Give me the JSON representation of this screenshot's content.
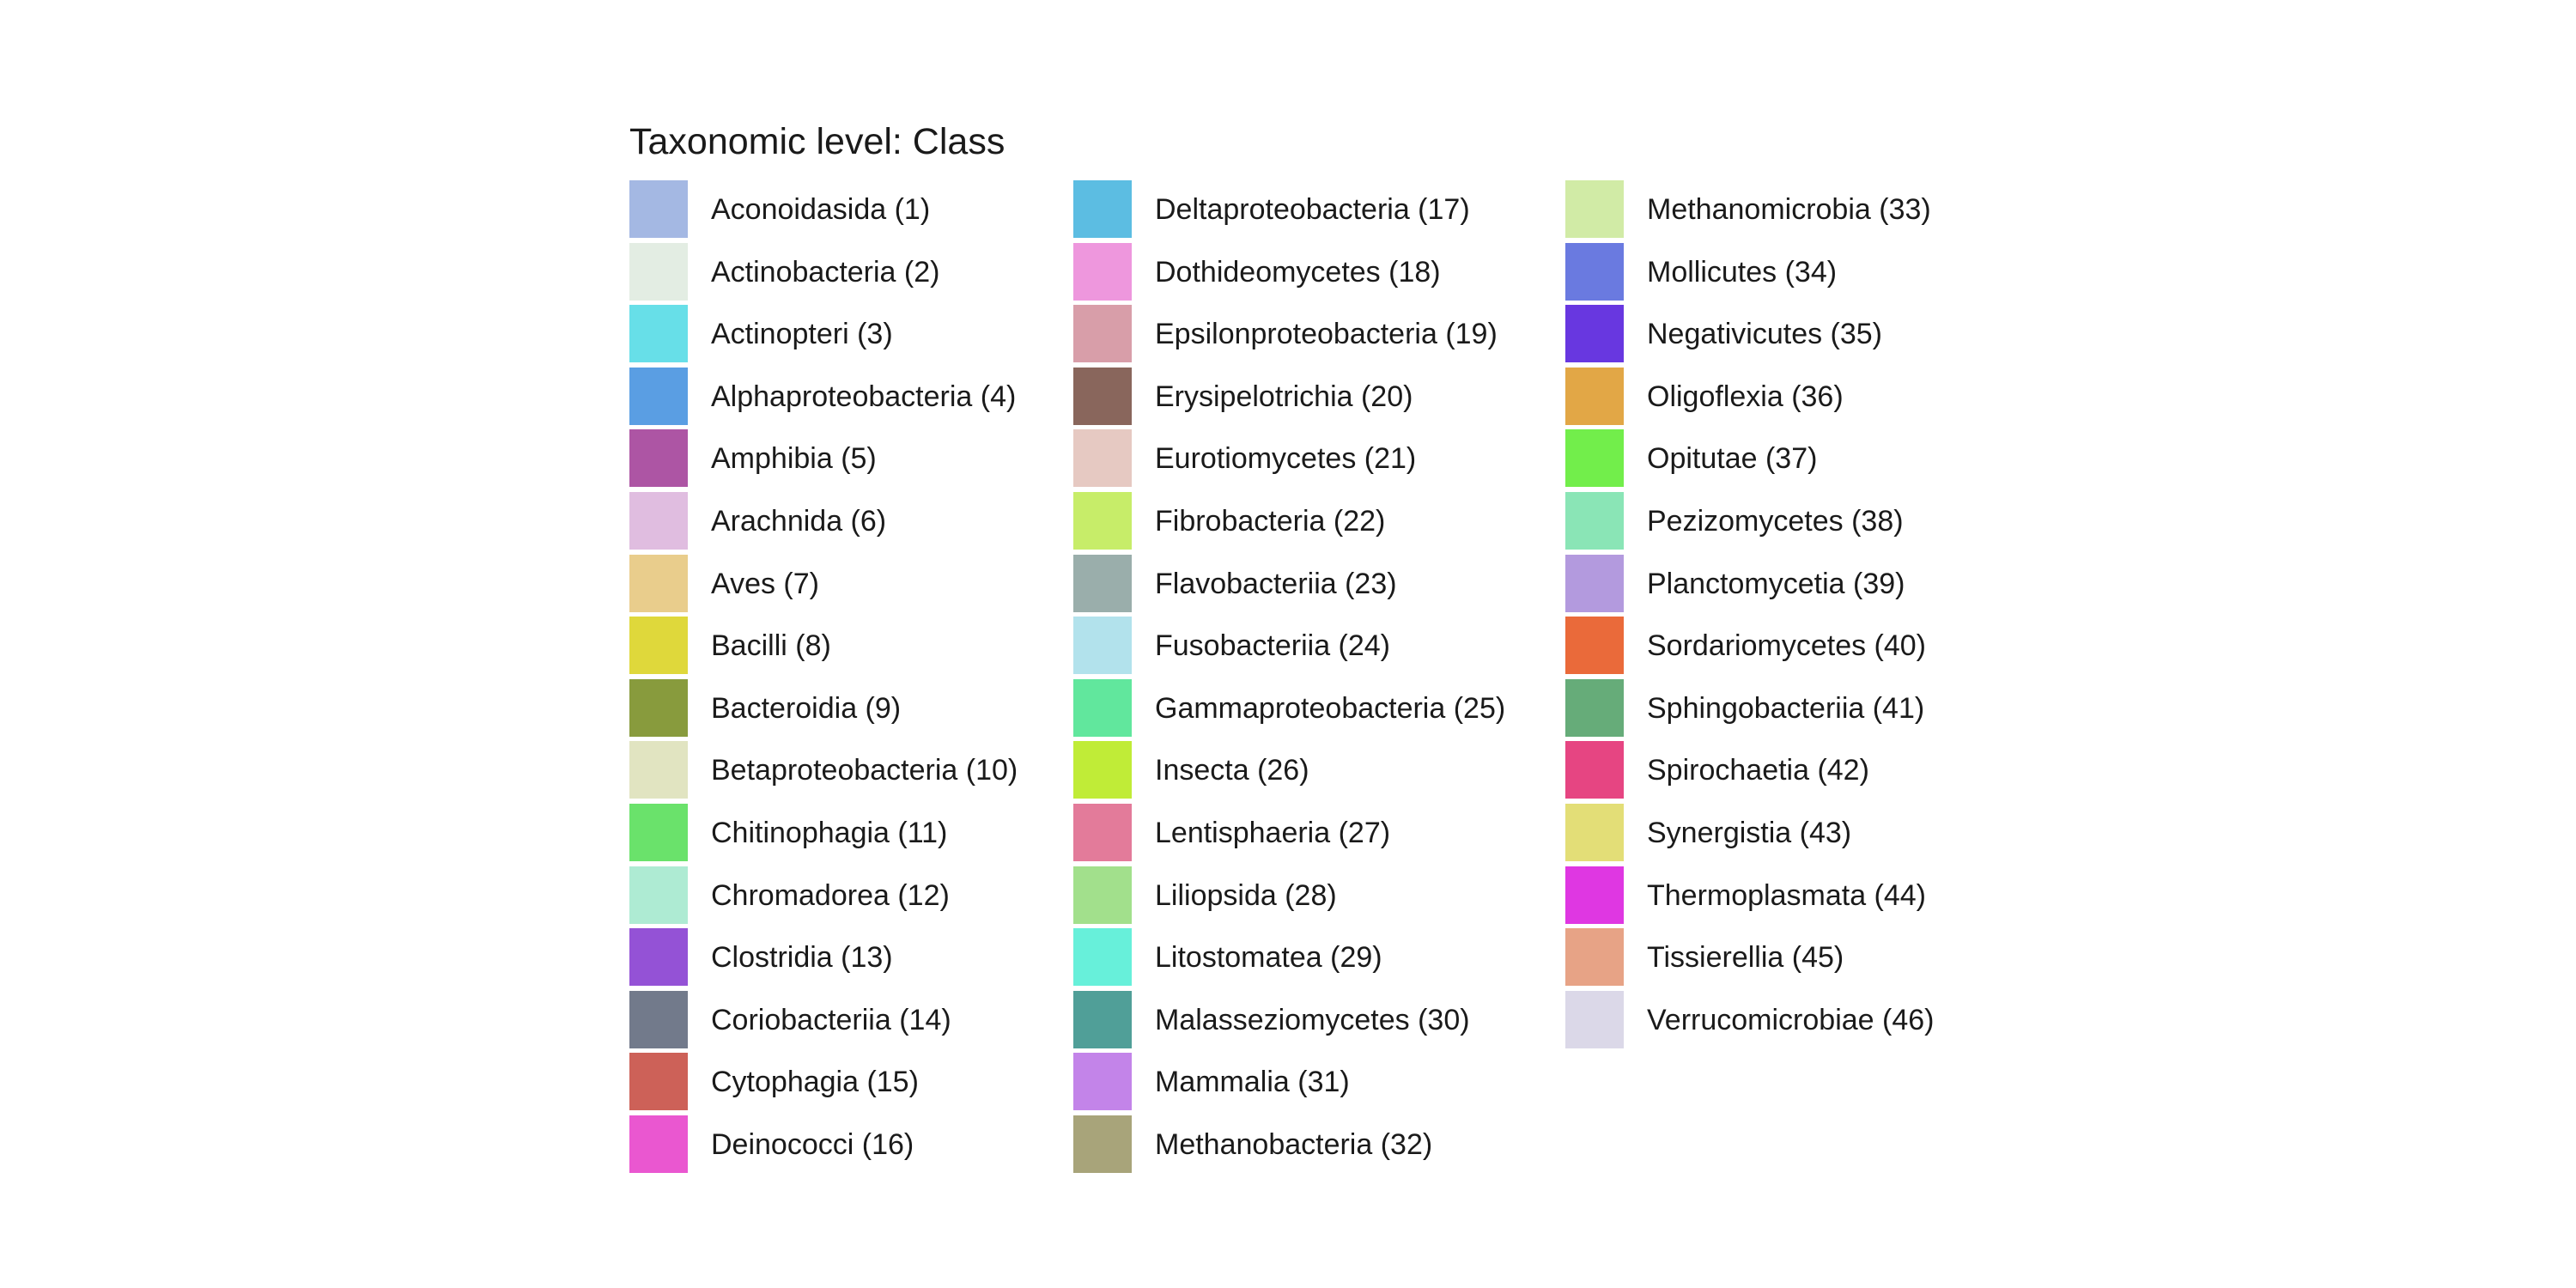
{
  "chart_data": {
    "type": "legend",
    "title": "Taxonomic level: Class",
    "columns": 3,
    "rows_per_column": 16,
    "items": [
      {
        "label": "Aconoidasida (1)",
        "color": "#a4b8e3"
      },
      {
        "label": "Actinobacteria (2)",
        "color": "#e3ede3"
      },
      {
        "label": "Actinopteri (3)",
        "color": "#67dfe8"
      },
      {
        "label": "Alphaproteobacteria (4)",
        "color": "#5a9ee3"
      },
      {
        "label": "Amphibia (5)",
        "color": "#ad55a4"
      },
      {
        "label": "Arachnida (6)",
        "color": "#e0bde0"
      },
      {
        "label": "Aves (7)",
        "color": "#e9cd8c"
      },
      {
        "label": "Bacilli (8)",
        "color": "#dfd83b"
      },
      {
        "label": "Bacteroidia (9)",
        "color": "#889b3d"
      },
      {
        "label": "Betaproteobacteria (10)",
        "color": "#e1e4c1"
      },
      {
        "label": "Chitinophagia (11)",
        "color": "#6ae26b"
      },
      {
        "label": "Chromadorea (12)",
        "color": "#aeebd3"
      },
      {
        "label": "Clostridia (13)",
        "color": "#9452d6"
      },
      {
        "label": "Coriobacteriia (14)",
        "color": "#727a8b"
      },
      {
        "label": "Cytophagia (15)",
        "color": "#cd6158"
      },
      {
        "label": "Deinococci (16)",
        "color": "#ea57d0"
      },
      {
        "label": "Deltaproteobacteria (17)",
        "color": "#5cbde2"
      },
      {
        "label": "Dothideomycetes (18)",
        "color": "#ee97dd"
      },
      {
        "label": "Epsilonproteobacteria (19)",
        "color": "#d89ea9"
      },
      {
        "label": "Erysipelotrichia (20)",
        "color": "#89665c"
      },
      {
        "label": "Eurotiomycetes (21)",
        "color": "#e6c9c2"
      },
      {
        "label": "Fibrobacteria (22)",
        "color": "#c7ed69"
      },
      {
        "label": "Flavobacteriia (23)",
        "color": "#9aaeab"
      },
      {
        "label": "Fusobacteriia (24)",
        "color": "#b2e2ec"
      },
      {
        "label": "Gammaproteobacteria (25)",
        "color": "#61e79d"
      },
      {
        "label": "Insecta (26)",
        "color": "#c0ec37"
      },
      {
        "label": "Lentisphaeria (27)",
        "color": "#e37b9a"
      },
      {
        "label": "Liliopsida (28)",
        "color": "#a2e08c"
      },
      {
        "label": "Litostomatea (29)",
        "color": "#67f0da"
      },
      {
        "label": "Malasseziomycetes (30)",
        "color": "#509f98"
      },
      {
        "label": "Mammalia (31)",
        "color": "#c384e9"
      },
      {
        "label": "Methanobacteria (32)",
        "color": "#a8a47a"
      },
      {
        "label": "Methanomicrobia (33)",
        "color": "#d1eba6"
      },
      {
        "label": "Mollicutes (34)",
        "color": "#6a7ae0"
      },
      {
        "label": "Negativicutes (35)",
        "color": "#6837e0"
      },
      {
        "label": "Oligoflexia (36)",
        "color": "#e2a746"
      },
      {
        "label": "Opitutae (37)",
        "color": "#72ee4b"
      },
      {
        "label": "Pezizomycetes (38)",
        "color": "#8ae5b6"
      },
      {
        "label": "Planctomycetia (39)",
        "color": "#b39ade"
      },
      {
        "label": "Sordariomycetes (40)",
        "color": "#ea6a3a"
      },
      {
        "label": "Sphingobacteriia (41)",
        "color": "#66ac79"
      },
      {
        "label": "Spirochaetia (42)",
        "color": "#e64582"
      },
      {
        "label": "Synergistia (43)",
        "color": "#e3de77"
      },
      {
        "label": "Thermoplasmata (44)",
        "color": "#df37e2"
      },
      {
        "label": "Tissierellia (45)",
        "color": "#e7a386"
      },
      {
        "label": "Verrucomicrobiae (46)",
        "color": "#dbd8e8"
      }
    ]
  }
}
